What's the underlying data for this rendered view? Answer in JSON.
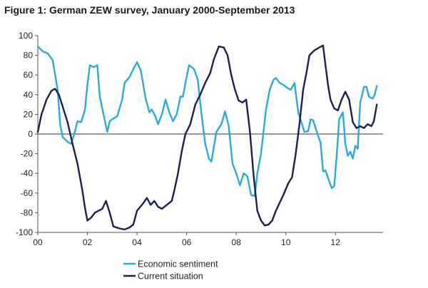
{
  "chart_data": {
    "type": "line",
    "title": "Figure 1: German ZEW survey, January 2000-September 2013",
    "xlabel": "",
    "ylabel": "",
    "xlim": [
      2000.0,
      2013.92
    ],
    "ylim": [
      -100,
      100
    ],
    "x_ticks": [
      {
        "value": 2000,
        "label": "00"
      },
      {
        "value": 2002,
        "label": "02"
      },
      {
        "value": 2004,
        "label": "04"
      },
      {
        "value": 2006,
        "label": "06"
      },
      {
        "value": 2008,
        "label": "08"
      },
      {
        "value": 2010,
        "label": "10"
      },
      {
        "value": 2012,
        "label": "12"
      }
    ],
    "y_ticks": [
      -100,
      -80,
      -60,
      -40,
      -20,
      0,
      20,
      40,
      60,
      80,
      100
    ],
    "y_tick_labels": [
      "-100",
      "-80",
      "-60",
      "-40",
      "-20",
      "0",
      "20",
      "40",
      "60",
      "80",
      "100"
    ],
    "grid": false,
    "zero_line": true,
    "legend_position": "bottom-center",
    "series": [
      {
        "name": "Economic sentiment",
        "color": "#29abe2",
        "points": [
          [
            2000.0,
            89
          ],
          [
            2000.2,
            84
          ],
          [
            2000.4,
            82
          ],
          [
            2000.6,
            75
          ],
          [
            2000.8,
            45
          ],
          [
            2000.9,
            10
          ],
          [
            2001.0,
            -3
          ],
          [
            2001.2,
            -8
          ],
          [
            2001.35,
            -10
          ],
          [
            2001.5,
            3
          ],
          [
            2001.6,
            13
          ],
          [
            2001.75,
            12
          ],
          [
            2001.9,
            25
          ],
          [
            2002.0,
            50
          ],
          [
            2002.1,
            70
          ],
          [
            2002.25,
            68
          ],
          [
            2002.4,
            70
          ],
          [
            2002.5,
            38
          ],
          [
            2002.65,
            20
          ],
          [
            2002.8,
            2
          ],
          [
            2002.9,
            13
          ],
          [
            2003.0,
            15
          ],
          [
            2003.2,
            18
          ],
          [
            2003.4,
            35
          ],
          [
            2003.5,
            52
          ],
          [
            2003.7,
            58
          ],
          [
            2003.85,
            66
          ],
          [
            2004.0,
            73
          ],
          [
            2004.15,
            65
          ],
          [
            2004.35,
            36
          ],
          [
            2004.5,
            22
          ],
          [
            2004.6,
            25
          ],
          [
            2004.75,
            17
          ],
          [
            2004.85,
            10
          ],
          [
            2005.0,
            20
          ],
          [
            2005.15,
            35
          ],
          [
            2005.3,
            22
          ],
          [
            2005.45,
            13
          ],
          [
            2005.6,
            20
          ],
          [
            2005.75,
            38
          ],
          [
            2005.85,
            38
          ],
          [
            2006.0,
            58
          ],
          [
            2006.1,
            70
          ],
          [
            2006.3,
            66
          ],
          [
            2006.45,
            55
          ],
          [
            2006.6,
            20
          ],
          [
            2006.75,
            -10
          ],
          [
            2006.9,
            -25
          ],
          [
            2007.0,
            -28
          ],
          [
            2007.2,
            2
          ],
          [
            2007.4,
            10
          ],
          [
            2007.55,
            23
          ],
          [
            2007.7,
            8
          ],
          [
            2007.85,
            -30
          ],
          [
            2008.0,
            -40
          ],
          [
            2008.15,
            -52
          ],
          [
            2008.3,
            -40
          ],
          [
            2008.45,
            -43
          ],
          [
            2008.6,
            -62
          ],
          [
            2008.75,
            -63
          ],
          [
            2008.85,
            -40
          ],
          [
            2009.0,
            -20
          ],
          [
            2009.2,
            25
          ],
          [
            2009.35,
            45
          ],
          [
            2009.5,
            55
          ],
          [
            2009.6,
            57
          ],
          [
            2009.75,
            52
          ],
          [
            2009.9,
            50
          ],
          [
            2010.05,
            47
          ],
          [
            2010.2,
            45
          ],
          [
            2010.35,
            52
          ],
          [
            2010.5,
            22
          ],
          [
            2010.6,
            14
          ],
          [
            2010.75,
            2
          ],
          [
            2010.9,
            3
          ],
          [
            2011.0,
            15
          ],
          [
            2011.1,
            14
          ],
          [
            2011.25,
            2
          ],
          [
            2011.4,
            -9
          ],
          [
            2011.5,
            -38
          ],
          [
            2011.6,
            -37
          ],
          [
            2011.75,
            -48
          ],
          [
            2011.85,
            -55
          ],
          [
            2011.95,
            -53
          ],
          [
            2012.05,
            -22
          ],
          [
            2012.15,
            15
          ],
          [
            2012.3,
            22
          ],
          [
            2012.4,
            -10
          ],
          [
            2012.5,
            -22
          ],
          [
            2012.6,
            -18
          ],
          [
            2012.7,
            -25
          ],
          [
            2012.8,
            -12
          ],
          [
            2012.9,
            -15
          ],
          [
            2013.0,
            32
          ],
          [
            2013.15,
            48
          ],
          [
            2013.25,
            48
          ],
          [
            2013.35,
            38
          ],
          [
            2013.5,
            36
          ],
          [
            2013.58,
            40
          ],
          [
            2013.67,
            49
          ]
        ]
      },
      {
        "name": "Current situation",
        "color": "#1b1e59",
        "points": [
          [
            2000.0,
            2
          ],
          [
            2000.15,
            20
          ],
          [
            2000.35,
            35
          ],
          [
            2000.55,
            44
          ],
          [
            2000.7,
            46
          ],
          [
            2000.85,
            40
          ],
          [
            2001.0,
            28
          ],
          [
            2001.2,
            12
          ],
          [
            2001.4,
            -10
          ],
          [
            2001.6,
            -30
          ],
          [
            2001.8,
            -58
          ],
          [
            2001.9,
            -75
          ],
          [
            2002.0,
            -88
          ],
          [
            2002.15,
            -85
          ],
          [
            2002.3,
            -80
          ],
          [
            2002.45,
            -78
          ],
          [
            2002.6,
            -76
          ],
          [
            2002.75,
            -68
          ],
          [
            2002.9,
            -80
          ],
          [
            2003.05,
            -94
          ],
          [
            2003.3,
            -96
          ],
          [
            2003.5,
            -97
          ],
          [
            2003.7,
            -95
          ],
          [
            2003.85,
            -92
          ],
          [
            2004.0,
            -78
          ],
          [
            2004.2,
            -72
          ],
          [
            2004.4,
            -65
          ],
          [
            2004.55,
            -72
          ],
          [
            2004.7,
            -68
          ],
          [
            2004.85,
            -74
          ],
          [
            2005.0,
            -76
          ],
          [
            2005.2,
            -72
          ],
          [
            2005.4,
            -68
          ],
          [
            2005.5,
            -58
          ],
          [
            2005.65,
            -40
          ],
          [
            2005.8,
            -18
          ],
          [
            2005.95,
            0
          ],
          [
            2006.15,
            10
          ],
          [
            2006.35,
            30
          ],
          [
            2006.55,
            40
          ],
          [
            2006.75,
            52
          ],
          [
            2006.95,
            62
          ],
          [
            2007.1,
            76
          ],
          [
            2007.3,
            89
          ],
          [
            2007.5,
            88
          ],
          [
            2007.65,
            80
          ],
          [
            2007.8,
            60
          ],
          [
            2007.95,
            45
          ],
          [
            2008.1,
            34
          ],
          [
            2008.25,
            32
          ],
          [
            2008.4,
            35
          ],
          [
            2008.55,
            3
          ],
          [
            2008.7,
            -42
          ],
          [
            2008.85,
            -78
          ],
          [
            2009.0,
            -88
          ],
          [
            2009.15,
            -93
          ],
          [
            2009.3,
            -92
          ],
          [
            2009.45,
            -88
          ],
          [
            2009.6,
            -78
          ],
          [
            2009.75,
            -70
          ],
          [
            2009.9,
            -62
          ],
          [
            2010.1,
            -50
          ],
          [
            2010.25,
            -44
          ],
          [
            2010.4,
            -20
          ],
          [
            2010.55,
            10
          ],
          [
            2010.7,
            45
          ],
          [
            2010.85,
            65
          ],
          [
            2010.95,
            80
          ],
          [
            2011.15,
            85
          ],
          [
            2011.35,
            88
          ],
          [
            2011.5,
            90
          ],
          [
            2011.6,
            70
          ],
          [
            2011.7,
            50
          ],
          [
            2011.8,
            35
          ],
          [
            2011.95,
            26
          ],
          [
            2012.1,
            24
          ],
          [
            2012.25,
            35
          ],
          [
            2012.4,
            43
          ],
          [
            2012.55,
            35
          ],
          [
            2012.7,
            12
          ],
          [
            2012.85,
            6
          ],
          [
            2013.0,
            8
          ],
          [
            2013.15,
            6
          ],
          [
            2013.3,
            10
          ],
          [
            2013.45,
            8
          ],
          [
            2013.55,
            13
          ],
          [
            2013.67,
            30
          ]
        ]
      }
    ]
  }
}
